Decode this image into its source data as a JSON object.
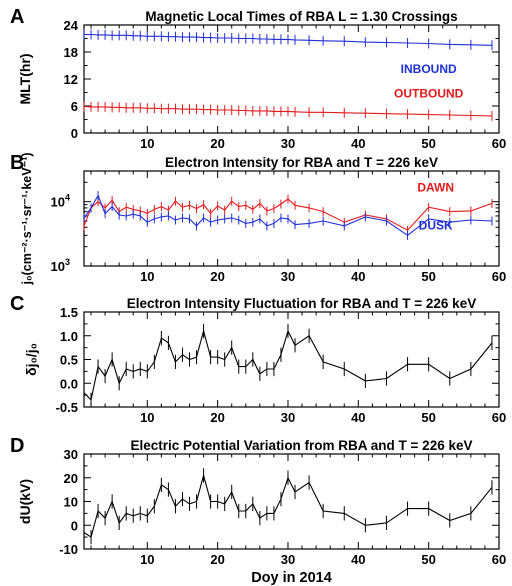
{
  "chart_data": [
    {
      "type": "line",
      "panel_letter": "A",
      "title": "Magnetic Local Times of RBA L = 1.30 Crossings",
      "ylabel": "MLT(hr)",
      "xlabel": "",
      "xlim": [
        1,
        60
      ],
      "ylim": [
        0,
        24
      ],
      "yscale": "linear",
      "xticks": [
        "10",
        "20",
        "30",
        "40",
        "50",
        "60"
      ],
      "yticks": [
        "0",
        "6",
        "12",
        "18",
        "24"
      ],
      "grid": false,
      "series": [
        {
          "name": "INBOUND",
          "color": "#1f2fd6",
          "x": [
            1,
            2,
            3,
            4,
            5,
            6,
            7,
            8,
            9,
            10,
            11,
            12,
            13,
            14,
            15,
            16,
            17,
            18,
            19,
            20,
            21,
            22,
            23,
            24,
            25,
            26,
            27,
            28,
            29,
            30,
            31,
            33,
            35,
            38,
            41,
            44,
            47,
            50,
            53,
            56,
            59
          ],
          "y": [
            21.9,
            21.9,
            21.8,
            21.8,
            21.7,
            21.7,
            21.7,
            21.6,
            21.6,
            21.5,
            21.5,
            21.5,
            21.4,
            21.4,
            21.3,
            21.3,
            21.3,
            21.2,
            21.2,
            21.1,
            21.1,
            21.1,
            21.0,
            21.0,
            21.0,
            20.9,
            20.9,
            20.8,
            20.8,
            20.8,
            20.7,
            20.6,
            20.5,
            20.4,
            20.2,
            20.1,
            20.0,
            19.9,
            19.7,
            19.6,
            19.5
          ]
        },
        {
          "name": "OUTBOUND",
          "color": "#e31a1c",
          "x": [
            1,
            2,
            3,
            4,
            5,
            6,
            7,
            8,
            9,
            10,
            11,
            12,
            13,
            14,
            15,
            16,
            17,
            18,
            19,
            20,
            21,
            22,
            23,
            24,
            25,
            26,
            27,
            28,
            29,
            30,
            31,
            33,
            35,
            38,
            41,
            44,
            47,
            50,
            53,
            56,
            59
          ],
          "y": [
            5.9,
            5.8,
            5.8,
            5.8,
            5.7,
            5.7,
            5.6,
            5.6,
            5.6,
            5.5,
            5.5,
            5.4,
            5.4,
            5.4,
            5.3,
            5.3,
            5.3,
            5.2,
            5.2,
            5.1,
            5.1,
            5.1,
            5.0,
            5.0,
            4.9,
            4.9,
            4.9,
            4.8,
            4.8,
            4.8,
            4.7,
            4.6,
            4.6,
            4.5,
            4.4,
            4.3,
            4.2,
            4.1,
            4.0,
            3.9,
            3.8
          ]
        }
      ],
      "legend_labels": [
        {
          "text": "INBOUND",
          "color": "#1f2fd6",
          "x": 50,
          "y": 13.3
        },
        {
          "text": "OUTBOUND",
          "color": "#e31a1c",
          "x": 50,
          "y": 7.9
        }
      ]
    },
    {
      "type": "line",
      "panel_letter": "B",
      "title": "Electron Intensity for RBA and T = 226 keV",
      "ylabel": "j₀(cm⁻²·s⁻¹·sr⁻¹·keV⁻¹)",
      "xlabel": "",
      "xlim": [
        1,
        60
      ],
      "ylim": [
        1000,
        30000
      ],
      "yscale": "log",
      "xticks": [
        "10",
        "20",
        "30",
        "40",
        "50",
        "60"
      ],
      "yticks": [
        {
          "base": "10",
          "exp": "3",
          "value": 1000
        },
        {
          "base": "10",
          "exp": "4",
          "value": 10000
        }
      ],
      "grid": false,
      "series": [
        {
          "name": "DAWN",
          "color": "#e31a1c",
          "x": [
            1,
            2,
            3,
            4,
            5,
            6,
            7,
            8,
            9,
            10,
            11,
            12,
            13,
            14,
            15,
            16,
            17,
            18,
            19,
            20,
            21,
            22,
            23,
            24,
            25,
            26,
            27,
            28,
            29,
            30,
            31,
            33,
            35,
            38,
            41,
            44,
            47,
            50,
            53,
            56,
            59
          ],
          "y": [
            4200,
            8000,
            10000,
            8000,
            10500,
            7000,
            8200,
            7600,
            7200,
            6600,
            7600,
            8400,
            7400,
            10200,
            8200,
            8800,
            7800,
            9000,
            6600,
            8600,
            7400,
            10200,
            8400,
            8800,
            7600,
            9400,
            7200,
            7800,
            9200,
            11000,
            8800,
            8000,
            7000,
            4800,
            6200,
            5400,
            3600,
            8200,
            7000,
            7200,
            9400
          ]
        },
        {
          "name": "DUSK",
          "color": "#1f2fd6",
          "x": [
            1,
            2,
            3,
            4,
            5,
            6,
            7,
            8,
            9,
            10,
            11,
            12,
            13,
            14,
            15,
            16,
            17,
            18,
            19,
            20,
            21,
            22,
            23,
            24,
            25,
            26,
            27,
            28,
            29,
            30,
            31,
            33,
            35,
            38,
            41,
            44,
            47,
            50,
            53,
            56,
            59
          ],
          "y": [
            5500,
            8000,
            12500,
            6500,
            8400,
            6200,
            6000,
            6400,
            6000,
            4800,
            5400,
            5800,
            6000,
            5200,
            5600,
            5400,
            4200,
            5600,
            4800,
            5200,
            5400,
            5600,
            5200,
            4600,
            4800,
            5400,
            4200,
            4600,
            5600,
            5400,
            4400,
            4600,
            5000,
            4200,
            5800,
            5000,
            3000,
            5400,
            4800,
            5200,
            5000
          ]
        }
      ],
      "legend_labels": [
        {
          "text": "DAWN",
          "color": "#e31a1c",
          "x": 51,
          "y": 14500
        },
        {
          "text": "DUSK",
          "color": "#1f2fd6",
          "x": 51,
          "y": 3700
        }
      ]
    },
    {
      "type": "line",
      "panel_letter": "C",
      "title": "Electron Intensity Fluctuation for RBA and T = 226 keV",
      "ylabel": "δj₀/j₀",
      "xlabel": "",
      "xlim": [
        1,
        60
      ],
      "ylim": [
        -0.5,
        1.5
      ],
      "yscale": "linear",
      "xticks": [
        "10",
        "20",
        "30",
        "40",
        "50",
        "60"
      ],
      "yticks": [
        "-0.5",
        "0.0",
        "0.5",
        "1.0",
        "1.5"
      ],
      "grid": false,
      "series": [
        {
          "color": "#000000",
          "error": 0.15,
          "x": [
            1,
            2,
            3,
            4,
            5,
            6,
            7,
            8,
            9,
            10,
            11,
            12,
            13,
            14,
            15,
            16,
            17,
            18,
            19,
            20,
            21,
            22,
            23,
            24,
            25,
            26,
            27,
            28,
            29,
            30,
            31,
            33,
            35,
            38,
            41,
            44,
            47,
            50,
            53,
            56,
            59
          ],
          "y": [
            -0.2,
            -0.35,
            0.35,
            0.15,
            0.5,
            0.0,
            0.3,
            0.25,
            0.3,
            0.25,
            0.45,
            0.95,
            0.85,
            0.45,
            0.6,
            0.5,
            0.55,
            1.1,
            0.55,
            0.55,
            0.5,
            0.75,
            0.35,
            0.35,
            0.5,
            0.2,
            0.3,
            0.3,
            0.6,
            1.1,
            0.8,
            1.0,
            0.45,
            0.3,
            0.05,
            0.1,
            0.4,
            0.4,
            0.1,
            0.3,
            0.85
          ]
        }
      ]
    },
    {
      "type": "line",
      "panel_letter": "D",
      "title": "Electric Potential Variation from RBA and T = 226 keV",
      "ylabel": "dU(kV)",
      "xlabel": "Doy in 2014",
      "xlim": [
        1,
        60
      ],
      "ylim": [
        -10,
        30
      ],
      "yscale": "linear",
      "xticks": [
        "10",
        "20",
        "30",
        "40",
        "50",
        "60"
      ],
      "yticks": [
        "-10",
        "0",
        "10",
        "20",
        "30"
      ],
      "grid": false,
      "series": [
        {
          "color": "#000000",
          "error": 3,
          "x": [
            1,
            2,
            3,
            4,
            5,
            6,
            7,
            8,
            9,
            10,
            11,
            12,
            13,
            14,
            15,
            16,
            17,
            18,
            19,
            20,
            21,
            22,
            23,
            24,
            25,
            26,
            27,
            28,
            29,
            30,
            31,
            33,
            35,
            38,
            41,
            44,
            47,
            50,
            53,
            56,
            59
          ],
          "y": [
            -3,
            -5,
            6,
            3,
            10,
            1,
            5,
            4,
            5,
            4,
            8,
            17,
            15,
            8,
            11,
            9,
            10,
            21,
            10,
            10,
            9,
            14,
            6,
            6,
            9,
            3,
            5,
            5,
            11,
            20,
            14,
            18,
            6,
            5,
            0,
            1,
            7,
            7,
            2,
            5,
            16
          ]
        }
      ]
    }
  ]
}
